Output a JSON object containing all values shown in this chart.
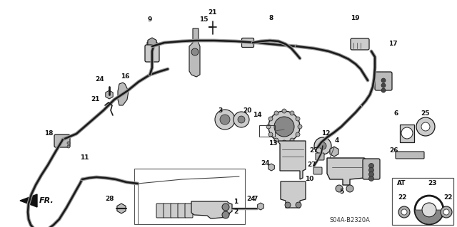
{
  "background_color": "#ffffff",
  "fig_width": 6.4,
  "fig_height": 3.19,
  "dpi": 100,
  "line_color": "#1a1a1a",
  "label_fontsize": 6.5,
  "diagram_code": "S04A-B2320A"
}
